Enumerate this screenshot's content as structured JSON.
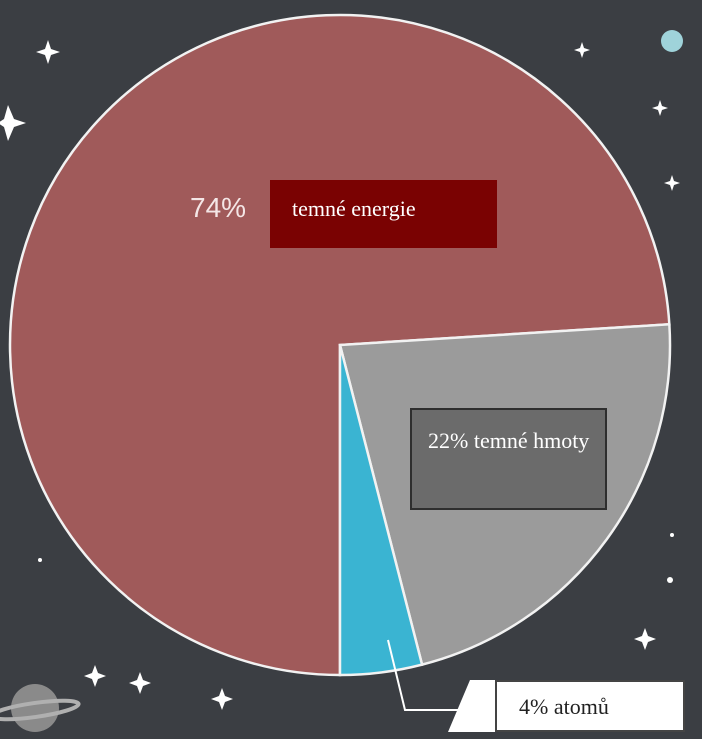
{
  "chart_data": {
    "type": "pie",
    "categories": [
      "temné energie",
      null,
      null
    ],
    "values": [
      74,
      22,
      4
    ],
    "value_labels": [
      "74%",
      "22% temné hmoty",
      "4% atomů"
    ],
    "colors": [
      "#a05a5a",
      "#9b9b9b",
      "#3ab4d2"
    ]
  }
}
